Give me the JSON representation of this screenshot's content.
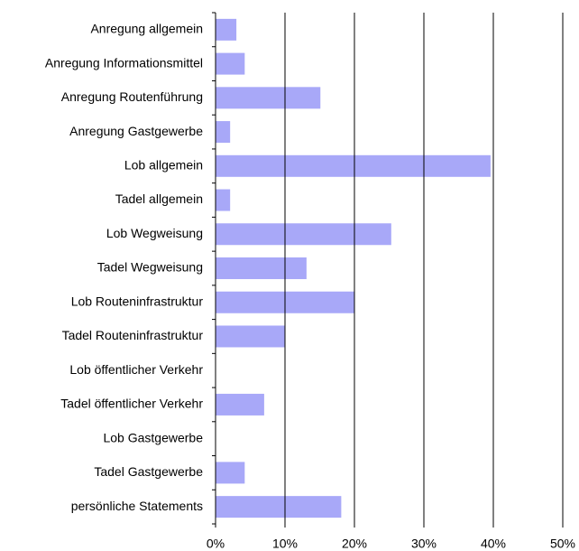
{
  "chart_data": {
    "type": "bar",
    "orientation": "horizontal",
    "categories": [
      "Anregung allgemein",
      "Anregung Informationsmittel",
      "Anregung Routenführung",
      "Anregung Gastgewerbe",
      "Lob allgemein",
      "Tadel allgemein",
      "Lob Wegweisung",
      "Tadel Wegweisung",
      "Lob Routeninfrastruktur",
      "Tadel Routeninfrastruktur",
      "Lob öffentlicher Verkehr",
      "Tadel öffentlicher Verkehr",
      "Lob Gastgewerbe",
      "Tadel Gastgewerbe",
      "persönliche Statements"
    ],
    "values": [
      3.0,
      4.2,
      15.1,
      2.1,
      39.6,
      2.1,
      25.3,
      13.1,
      20.0,
      10.0,
      0,
      7.0,
      0,
      4.2,
      18.1
    ],
    "color": "#a8a8f8",
    "xlim": [
      0,
      50
    ],
    "xticks": [
      {
        "value": 0,
        "label": "0%"
      },
      {
        "value": 10,
        "label": "10%"
      },
      {
        "value": 20,
        "label": "20%"
      },
      {
        "value": 30,
        "label": "30%"
      },
      {
        "value": 40,
        "label": "40%"
      },
      {
        "value": 50,
        "label": "50%"
      }
    ],
    "grid": true
  }
}
